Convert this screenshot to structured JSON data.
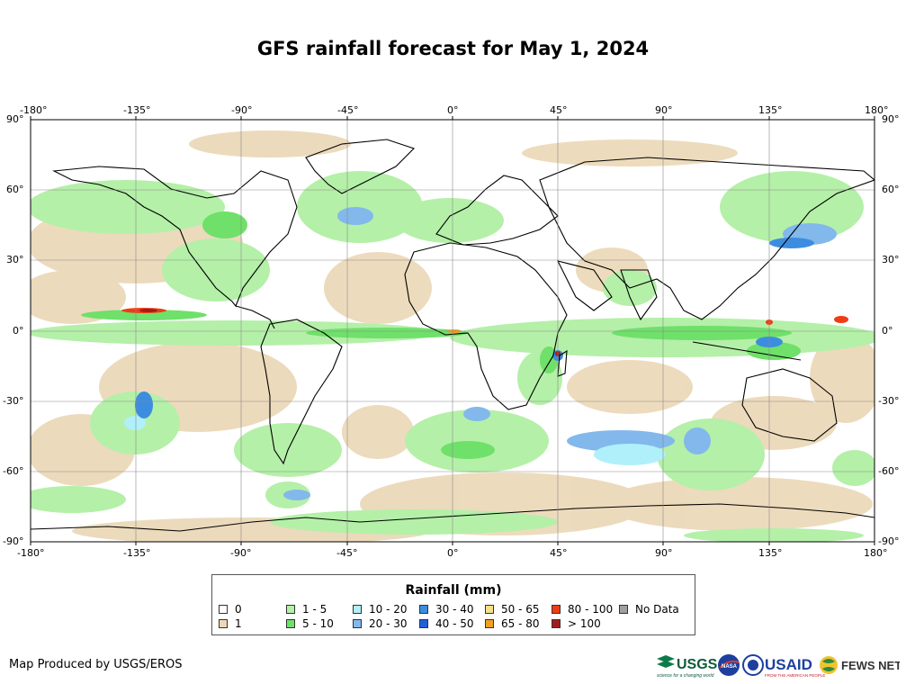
{
  "title": "GFS rainfall forecast for May 1, 2024",
  "map": {
    "projection": "equirectangular",
    "top_lon_ticks": [
      "-180°",
      "-135°",
      "-90°",
      "-45°",
      "0°",
      "45°",
      "90°",
      "135°",
      "180°"
    ],
    "bottom_lon_ticks": [
      "-180°",
      "-135°",
      "-90°",
      "-45°",
      "0°",
      "45°",
      "90°",
      "135°",
      "180°"
    ],
    "left_lat_ticks": [
      "90°",
      "60°",
      "30°",
      "0°",
      "-30°",
      "-60°",
      "-90°"
    ],
    "right_lat_ticks": [
      "90°",
      "60°",
      "30°",
      "0°",
      "-30°",
      "-60°",
      "-90°"
    ],
    "grid": true
  },
  "legend": {
    "title": "Rainfall (mm)",
    "items": [
      {
        "label": "0",
        "color": "#ffffff"
      },
      {
        "label": "1",
        "color": "#ecd9b9"
      },
      {
        "label": "1 - 5",
        "color": "#b4f0a8"
      },
      {
        "label": "5 - 10",
        "color": "#6fe06a"
      },
      {
        "label": "10 - 20",
        "color": "#b0f0fa"
      },
      {
        "label": "20 - 30",
        "color": "#82b8ec"
      },
      {
        "label": "30 - 40",
        "color": "#3c8de0"
      },
      {
        "label": "40 - 50",
        "color": "#1f5fd8"
      },
      {
        "label": "50 - 65",
        "color": "#f5e08a"
      },
      {
        "label": "65 - 80",
        "color": "#f0a020"
      },
      {
        "label": "80 - 100",
        "color": "#f03c14"
      },
      {
        "label": "> 100",
        "color": "#a01c1c"
      },
      {
        "label": "No Data",
        "color": "#a0a0a0"
      }
    ]
  },
  "credit": "Map Produced by USGS/EROS",
  "logos": {
    "usgs": "USGS",
    "usgs_tagline": "science for a changing world",
    "nasa": "NASA",
    "usaid": "USAID",
    "usaid_tagline": "FROM THE AMERICAN PEOPLE",
    "fewsnet": "FEWS NET"
  }
}
